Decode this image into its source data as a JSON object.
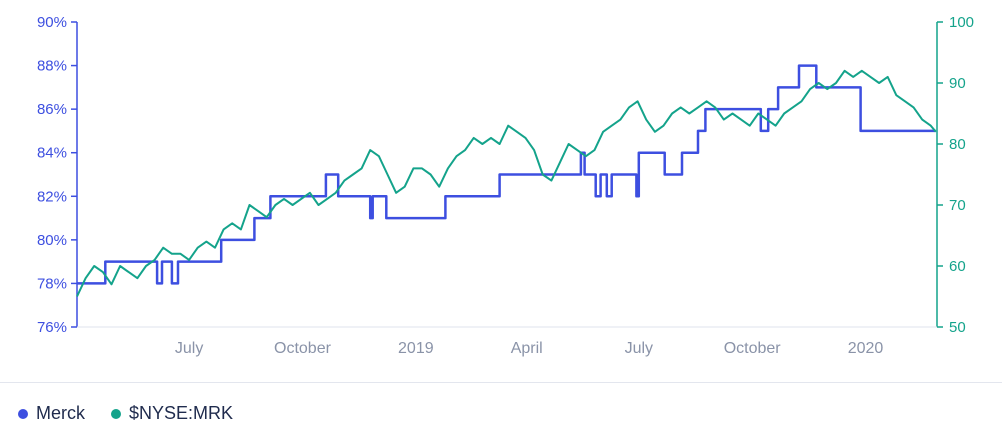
{
  "chart_data": {
    "type": "line",
    "x_ticks": [
      "July",
      "October",
      "2019",
      "April",
      "July",
      "October",
      "2020"
    ],
    "y_left": {
      "ticks": [
        "76%",
        "78%",
        "80%",
        "82%",
        "84%",
        "86%",
        "88%",
        "90%"
      ],
      "range": [
        76,
        90
      ],
      "unit": "%"
    },
    "y_right": {
      "ticks": [
        "50",
        "60",
        "70",
        "80",
        "90",
        "100"
      ],
      "range": [
        50,
        100
      ]
    },
    "series": [
      {
        "name": "Merck",
        "axis": "left",
        "color": "#3d4fe0",
        "step": true,
        "points": [
          [
            "2018-04-01",
            78
          ],
          [
            "2018-04-24",
            79
          ],
          [
            "2018-06-05",
            78
          ],
          [
            "2018-06-09",
            79
          ],
          [
            "2018-06-17",
            78
          ],
          [
            "2018-06-22",
            79
          ],
          [
            "2018-07-27",
            80
          ],
          [
            "2018-08-23",
            81
          ],
          [
            "2018-09-05",
            82
          ],
          [
            "2018-10-20",
            83
          ],
          [
            "2018-10-30",
            82
          ],
          [
            "2018-11-25",
            81
          ],
          [
            "2018-11-27",
            82
          ],
          [
            "2018-12-08",
            81
          ],
          [
            "2019-01-25",
            82
          ],
          [
            "2019-03-10",
            83
          ],
          [
            "2019-05-15",
            84
          ],
          [
            "2019-05-18",
            83
          ],
          [
            "2019-05-27",
            82
          ],
          [
            "2019-05-31",
            83
          ],
          [
            "2019-06-05",
            82
          ],
          [
            "2019-06-09",
            83
          ],
          [
            "2019-06-29",
            82
          ],
          [
            "2019-07-01",
            84
          ],
          [
            "2019-07-22",
            83
          ],
          [
            "2019-08-05",
            84
          ],
          [
            "2019-08-18",
            85
          ],
          [
            "2019-08-24",
            86
          ],
          [
            "2019-10-08",
            85
          ],
          [
            "2019-10-14",
            86
          ],
          [
            "2019-10-22",
            87
          ],
          [
            "2019-11-08",
            88
          ],
          [
            "2019-11-22",
            87
          ],
          [
            "2019-12-28",
            85
          ],
          [
            "2020-02-27",
            85
          ]
        ]
      },
      {
        "name": "$NYSE:MRK",
        "axis": "right",
        "color": "#14a38b",
        "step": false,
        "points": [
          [
            "2018-04-01",
            55
          ],
          [
            "2018-04-08",
            58
          ],
          [
            "2018-04-15",
            60
          ],
          [
            "2018-04-22",
            59
          ],
          [
            "2018-04-29",
            57
          ],
          [
            "2018-05-06",
            60
          ],
          [
            "2018-05-13",
            59
          ],
          [
            "2018-05-20",
            58
          ],
          [
            "2018-05-27",
            60
          ],
          [
            "2018-06-03",
            61
          ],
          [
            "2018-06-10",
            63
          ],
          [
            "2018-06-17",
            62
          ],
          [
            "2018-06-24",
            62
          ],
          [
            "2018-07-01",
            61
          ],
          [
            "2018-07-08",
            63
          ],
          [
            "2018-07-15",
            64
          ],
          [
            "2018-07-22",
            63
          ],
          [
            "2018-07-29",
            66
          ],
          [
            "2018-08-05",
            67
          ],
          [
            "2018-08-12",
            66
          ],
          [
            "2018-08-19",
            70
          ],
          [
            "2018-08-26",
            69
          ],
          [
            "2018-09-02",
            68
          ],
          [
            "2018-09-09",
            70
          ],
          [
            "2018-09-16",
            71
          ],
          [
            "2018-09-23",
            70
          ],
          [
            "2018-09-30",
            71
          ],
          [
            "2018-10-07",
            72
          ],
          [
            "2018-10-14",
            70
          ],
          [
            "2018-10-21",
            71
          ],
          [
            "2018-10-28",
            72
          ],
          [
            "2018-11-04",
            74
          ],
          [
            "2018-11-11",
            75
          ],
          [
            "2018-11-18",
            76
          ],
          [
            "2018-11-25",
            79
          ],
          [
            "2018-12-02",
            78
          ],
          [
            "2018-12-09",
            75
          ],
          [
            "2018-12-16",
            72
          ],
          [
            "2018-12-23",
            73
          ],
          [
            "2018-12-30",
            76
          ],
          [
            "2019-01-06",
            76
          ],
          [
            "2019-01-13",
            75
          ],
          [
            "2019-01-20",
            73
          ],
          [
            "2019-01-27",
            76
          ],
          [
            "2019-02-03",
            78
          ],
          [
            "2019-02-10",
            79
          ],
          [
            "2019-02-17",
            81
          ],
          [
            "2019-02-24",
            80
          ],
          [
            "2019-03-03",
            81
          ],
          [
            "2019-03-10",
            80
          ],
          [
            "2019-03-17",
            83
          ],
          [
            "2019-03-24",
            82
          ],
          [
            "2019-03-31",
            81
          ],
          [
            "2019-04-07",
            79
          ],
          [
            "2019-04-14",
            75
          ],
          [
            "2019-04-21",
            74
          ],
          [
            "2019-04-28",
            77
          ],
          [
            "2019-05-05",
            80
          ],
          [
            "2019-05-12",
            79
          ],
          [
            "2019-05-19",
            78
          ],
          [
            "2019-05-26",
            79
          ],
          [
            "2019-06-02",
            82
          ],
          [
            "2019-06-09",
            83
          ],
          [
            "2019-06-16",
            84
          ],
          [
            "2019-06-23",
            86
          ],
          [
            "2019-06-30",
            87
          ],
          [
            "2019-07-07",
            84
          ],
          [
            "2019-07-14",
            82
          ],
          [
            "2019-07-21",
            83
          ],
          [
            "2019-07-28",
            85
          ],
          [
            "2019-08-04",
            86
          ],
          [
            "2019-08-11",
            85
          ],
          [
            "2019-08-18",
            86
          ],
          [
            "2019-08-25",
            87
          ],
          [
            "2019-09-01",
            86
          ],
          [
            "2019-09-08",
            84
          ],
          [
            "2019-09-15",
            85
          ],
          [
            "2019-09-22",
            84
          ],
          [
            "2019-09-29",
            83
          ],
          [
            "2019-10-06",
            85
          ],
          [
            "2019-10-13",
            84
          ],
          [
            "2019-10-20",
            83
          ],
          [
            "2019-10-27",
            85
          ],
          [
            "2019-11-03",
            86
          ],
          [
            "2019-11-10",
            87
          ],
          [
            "2019-11-17",
            89
          ],
          [
            "2019-11-24",
            90
          ],
          [
            "2019-12-01",
            89
          ],
          [
            "2019-12-08",
            90
          ],
          [
            "2019-12-15",
            92
          ],
          [
            "2019-12-22",
            91
          ],
          [
            "2019-12-29",
            92
          ],
          [
            "2020-01-05",
            91
          ],
          [
            "2020-01-12",
            90
          ],
          [
            "2020-01-19",
            91
          ],
          [
            "2020-01-26",
            88
          ],
          [
            "2020-02-02",
            87
          ],
          [
            "2020-02-09",
            86
          ],
          [
            "2020-02-16",
            84
          ],
          [
            "2020-02-23",
            83
          ],
          [
            "2020-02-27",
            82
          ]
        ]
      }
    ],
    "x_range": [
      "2018-04-01",
      "2020-02-28"
    ],
    "x_tick_dates": [
      "2018-07-01",
      "2018-10-01",
      "2019-01-01",
      "2019-04-01",
      "2019-07-01",
      "2019-10-01",
      "2020-01-01"
    ],
    "grid": false,
    "legend_position": "bottom-left"
  },
  "legend": {
    "items": [
      {
        "label": "Merck",
        "color": "#3d4fe0"
      },
      {
        "label": "$NYSE:MRK",
        "color": "#14a38b"
      }
    ]
  }
}
